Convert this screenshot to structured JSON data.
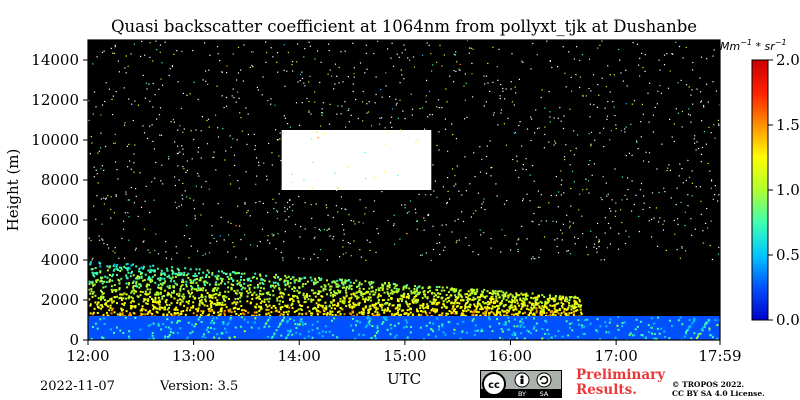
{
  "chart_data": {
    "type": "heatmap",
    "title": "Quasi backscatter coefficient at 1064nm from pollyxt_tjk at Dushanbe",
    "xlabel": "UTC",
    "ylabel": "Height (m)",
    "x_ticks": [
      "12:00",
      "13:00",
      "14:00",
      "15:00",
      "16:00",
      "17:00",
      "17:59"
    ],
    "y_ticks": [
      0,
      2000,
      4000,
      6000,
      8000,
      10000,
      12000,
      14000
    ],
    "ylim": [
      0,
      15000
    ],
    "colorbar": {
      "label": "Mm^-1 * sr^-1",
      "ticks": [
        "0.0",
        "0.5",
        "1.0",
        "1.5",
        "2.0"
      ],
      "range": [
        0,
        2.0
      ],
      "colormap": [
        "#0000c8",
        "#0050ff",
        "#00c8ff",
        "#40ffb0",
        "#b0ff30",
        "#ffff00",
        "#ff9000",
        "#ff2000",
        "#c80000"
      ]
    },
    "background_color": "#000000",
    "layers": [
      {
        "name": "boundary layer",
        "time_start": "12:00",
        "time_end": "17:59",
        "height_bottom": 0,
        "height_top": 1200
      },
      {
        "name": "aerosol layer",
        "time_start": "12:00",
        "time_end": "16:40",
        "height_bottom": 1200,
        "height_top": 4000
      },
      {
        "name": "cloud",
        "time_start": "13:50",
        "time_end": "15:15",
        "height_bottom": 7500,
        "height_top": 10500
      }
    ]
  },
  "footer": {
    "date": "2022-11-07",
    "version": "Version: 3.5",
    "preliminary": [
      "Preliminary",
      "Results."
    ],
    "copyright": [
      "© TROPOS 2022.",
      "CC BY SA 4.0 License."
    ],
    "license_badge": [
      "cc",
      "BY",
      "SA"
    ]
  }
}
